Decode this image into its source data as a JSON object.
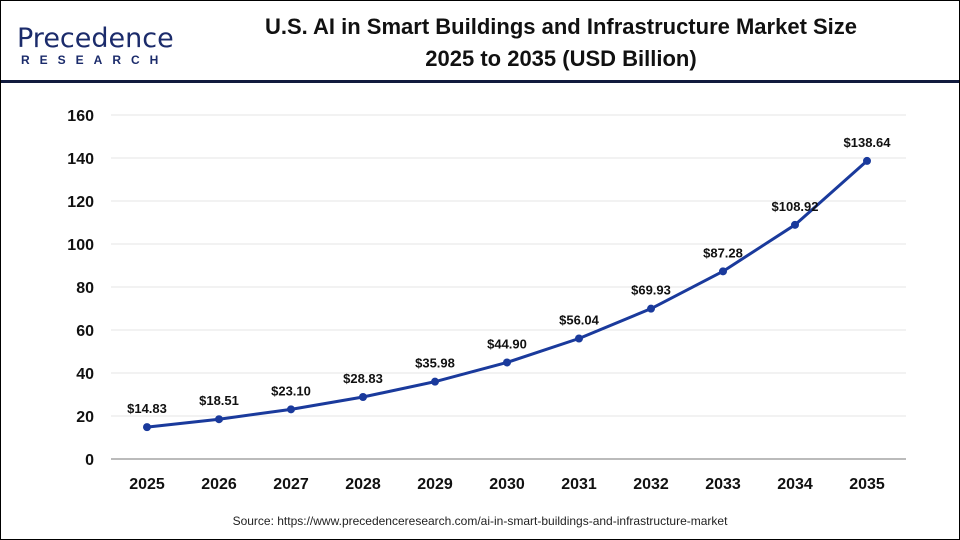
{
  "logo": {
    "line1": "Precedence",
    "line2": "RESEARCH"
  },
  "title_line1": "U.S. AI in Smart Buildings and Infrastructure Market Size",
  "title_line2": "2025 to 2035 (USD Billion)",
  "source": "Source: https://www.precedenceresearch.com/ai-in-smart-buildings-and-infrastructure-market",
  "chart_data": {
    "type": "line",
    "title": "U.S. AI in Smart Buildings and Infrastructure Market Size 2025 to 2035 (USD Billion)",
    "categories": [
      "2025",
      "2026",
      "2027",
      "2028",
      "2029",
      "2030",
      "2031",
      "2032",
      "2033",
      "2034",
      "2035"
    ],
    "values": [
      14.83,
      18.51,
      23.1,
      28.83,
      35.98,
      44.9,
      56.04,
      69.93,
      87.28,
      108.92,
      138.64
    ],
    "data_labels": [
      "$14.83",
      "$18.51",
      "$23.10",
      "$28.83",
      "$35.98",
      "$44.90",
      "$56.04",
      "$69.93",
      "$87.28",
      "$108.92",
      "$138.64"
    ],
    "ylim": [
      0,
      160
    ],
    "yticks": [
      0,
      20,
      40,
      60,
      80,
      100,
      120,
      140,
      160
    ],
    "grid": true,
    "line_color": "#1a3a9c",
    "xlabel": "",
    "ylabel": ""
  }
}
